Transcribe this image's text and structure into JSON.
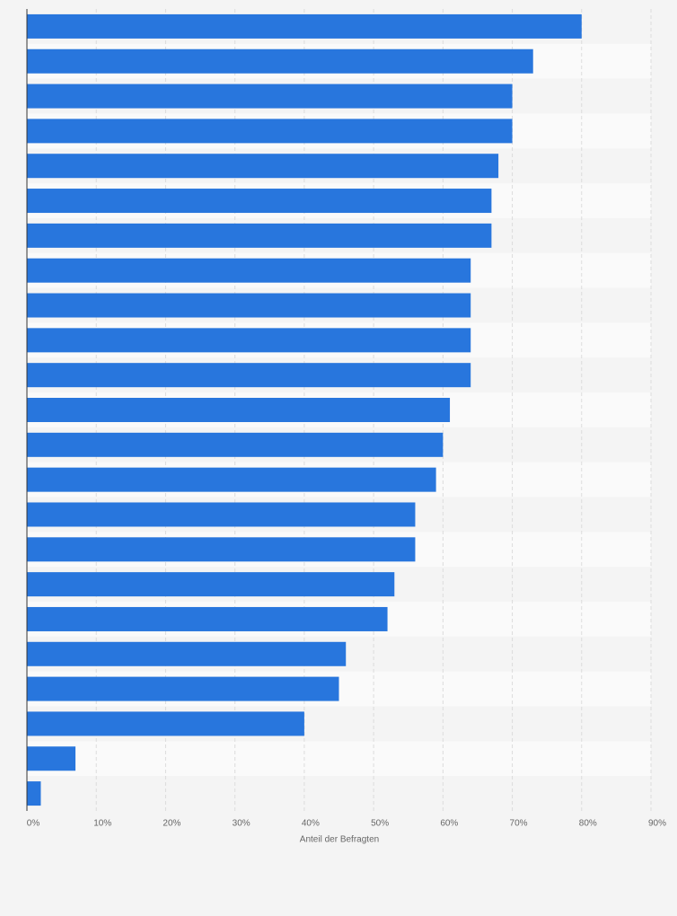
{
  "chart_data": {
    "type": "bar",
    "orientation": "horizontal",
    "x_label": "Anteil der Befragten",
    "categories": [
      null,
      null,
      null,
      null,
      null,
      null,
      null,
      null,
      null,
      null,
      null,
      null,
      null,
      null,
      null,
      null,
      null,
      null,
      null,
      null,
      null,
      null,
      null
    ],
    "values": [
      80,
      73,
      70,
      70,
      68,
      67,
      67,
      64,
      64,
      64,
      64,
      61,
      60,
      59,
      56,
      56,
      53,
      52,
      46,
      45,
      40,
      7,
      2
    ],
    "color": "#2876dd",
    "xlim": [
      0,
      90
    ],
    "xticks": [
      {
        "value": 0,
        "label": "0%"
      },
      {
        "value": 10,
        "label": "10%"
      },
      {
        "value": 20,
        "label": "20%"
      },
      {
        "value": 30,
        "label": "30%"
      },
      {
        "value": 40,
        "label": "40%"
      },
      {
        "value": 50,
        "label": "50%"
      },
      {
        "value": 60,
        "label": "60%"
      },
      {
        "value": 70,
        "label": "70%"
      },
      {
        "value": 80,
        "label": "80%"
      },
      {
        "value": 90,
        "label": "90%"
      }
    ],
    "grid": true
  }
}
